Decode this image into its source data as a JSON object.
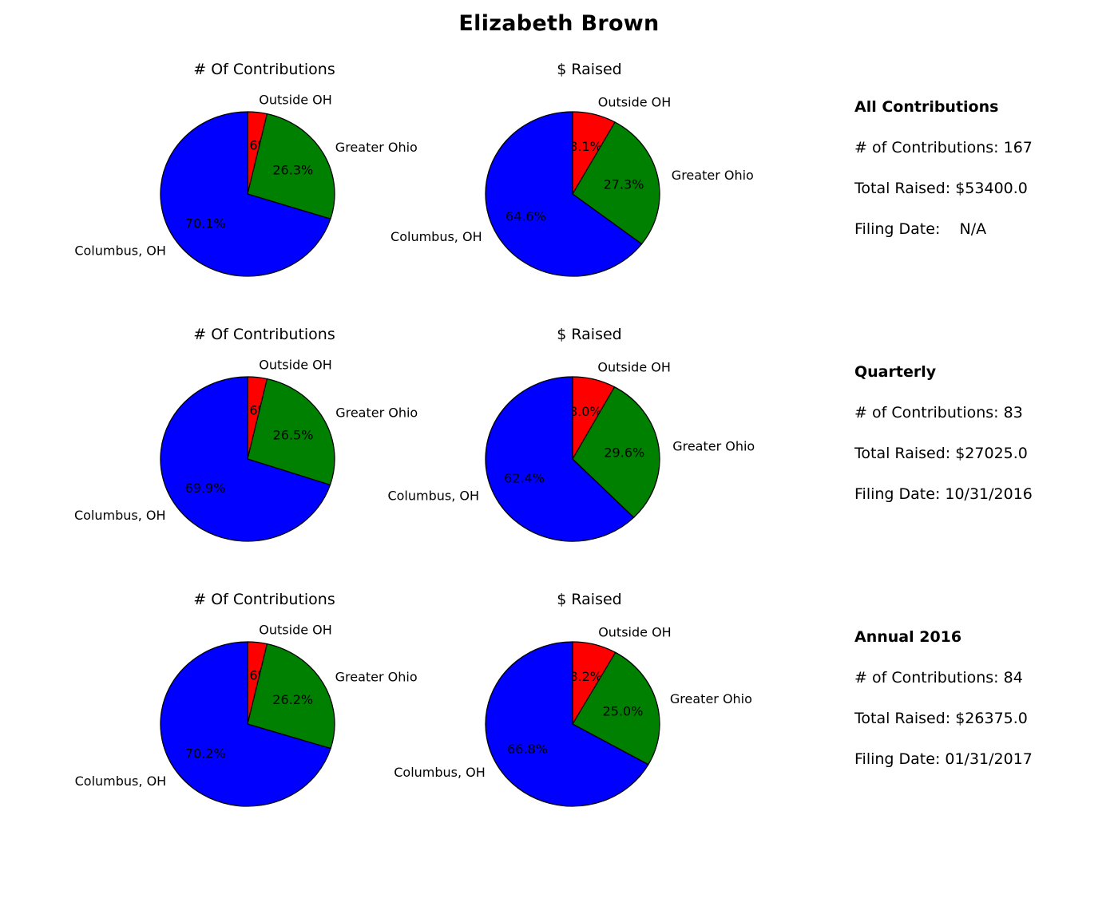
{
  "title": "Elizabeth Brown",
  "colors": {
    "Outside OH": "#ff0000",
    "Greater Ohio": "#008000",
    "Columbus, OH": "#0000ff"
  },
  "summaries": [
    {
      "heading": "All Contributions",
      "count_line": "# of Contributions: 167",
      "raised_line": "Total Raised: $53400.0",
      "date_line": "Filing Date:    N/A"
    },
    {
      "heading": "Quarterly",
      "count_line": "# of Contributions: 83",
      "raised_line": "Total Raised: $27025.0",
      "date_line": "Filing Date: 10/31/2016"
    },
    {
      "heading": "Annual 2016",
      "count_line": "# of Contributions: 84",
      "raised_line": "Total Raised: $26375.0",
      "date_line": "Filing Date: 01/31/2017"
    }
  ],
  "chart_data": [
    {
      "type": "pie",
      "title": "# Of Contributions",
      "labels": [
        "Outside OH",
        "Greater Ohio",
        "Columbus, OH"
      ],
      "values": [
        3.6,
        26.3,
        70.1
      ],
      "pct_labels": [
        "3.6%",
        "26.3%",
        "70.1%"
      ]
    },
    {
      "type": "pie",
      "title": "$ Raised",
      "labels": [
        "Outside OH",
        "Greater Ohio",
        "Columbus, OH"
      ],
      "values": [
        8.1,
        27.3,
        64.6
      ],
      "pct_labels": [
        "8.1%",
        "27.3%",
        "64.6%"
      ]
    },
    {
      "type": "pie",
      "title": "# Of Contributions",
      "labels": [
        "Outside OH",
        "Greater Ohio",
        "Columbus, OH"
      ],
      "values": [
        3.6,
        26.5,
        69.9
      ],
      "pct_labels": [
        "3.6%",
        "26.5%",
        "69.9%"
      ]
    },
    {
      "type": "pie",
      "title": "$ Raised",
      "labels": [
        "Outside OH",
        "Greater Ohio",
        "Columbus, OH"
      ],
      "values": [
        8.0,
        29.6,
        62.4
      ],
      "pct_labels": [
        "8.0%",
        "29.6%",
        "62.4%"
      ]
    },
    {
      "type": "pie",
      "title": "# Of Contributions",
      "labels": [
        "Outside OH",
        "Greater Ohio",
        "Columbus, OH"
      ],
      "values": [
        3.6,
        26.2,
        70.2
      ],
      "pct_labels": [
        "3.6%",
        "26.2%",
        "70.2%"
      ]
    },
    {
      "type": "pie",
      "title": "$ Raised",
      "labels": [
        "Outside OH",
        "Greater Ohio",
        "Columbus, OH"
      ],
      "values": [
        8.2,
        25.0,
        66.8
      ],
      "pct_labels": [
        "8.2%",
        "25.0%",
        "66.8%"
      ]
    }
  ]
}
